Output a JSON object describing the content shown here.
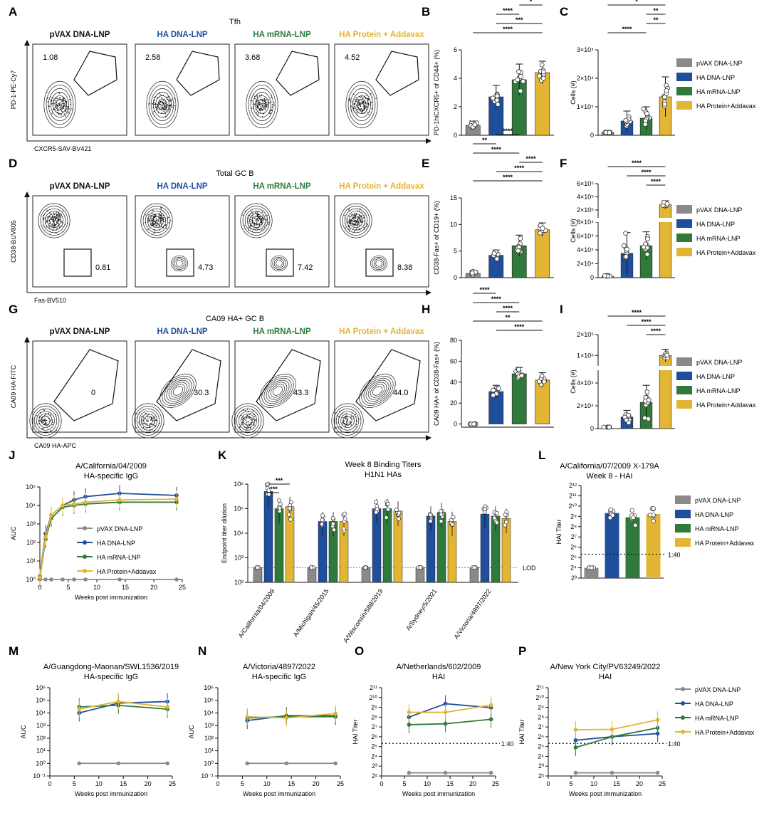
{
  "colors": {
    "pvax": "#8a8a8a",
    "dna": "#1f4e9c",
    "mrna": "#2f7a3a",
    "prot": "#e2b534"
  },
  "groups": [
    "pVAX DNA-LNP",
    "HA DNA-LNP",
    "HA mRNA-LNP",
    "HA Protein + Addavax"
  ],
  "legend_groups": [
    "pVAX DNA-LNP",
    "HA DNA-LNP",
    "HA mRNA-LNP",
    "HA Protein+Addavax"
  ],
  "flow_rows": [
    {
      "letter": "A",
      "title": "Tfh",
      "ylabel": "PD-1-PE-Cy7",
      "xlabel": "CXCR5-SAV-BV421",
      "gate": "poly",
      "values": [
        "1.08",
        "2.58",
        "3.68",
        "4.52"
      ]
    },
    {
      "letter": "D",
      "title": "Total GC B",
      "ylabel": "CD38-BUV805",
      "xlabel": "Fas-BV510",
      "gate": "box",
      "values": [
        "0.81",
        "4.73",
        "7.42",
        "8.38"
      ]
    },
    {
      "letter": "G",
      "title": "CA09 HA+ GC B",
      "ylabel": "CA09 HA-FITC",
      "xlabel": "CA09 HA-APC",
      "gate": "diag",
      "values": [
        "0",
        "30.3",
        "43.3",
        "44.0"
      ]
    }
  ],
  "chart_data": [
    {
      "id": "B",
      "type": "bar",
      "categories": [
        "pVAX DNA-LNP",
        "HA DNA-LNP",
        "HA mRNA-LNP",
        "HA Protein+Addavax"
      ],
      "values": [
        0.7,
        2.7,
        3.9,
        4.4
      ],
      "errors": [
        0.3,
        0.8,
        1.1,
        0.8
      ],
      "ylim": [
        0,
        6
      ],
      "yticks": [
        "0",
        "2",
        "4",
        "6"
      ],
      "ylabel": "PD-1hiCXCR5+ of CD44+ (%)",
      "sig": [
        "****",
        "***",
        "****",
        "*",
        "****"
      ]
    },
    {
      "id": "C",
      "type": "bar",
      "categories": [
        "pVAX DNA-LNP",
        "HA DNA-LNP",
        "HA mRNA-LNP",
        "HA Protein+Addavax"
      ],
      "values": [
        1000,
        5000,
        6000,
        13500
      ],
      "errors": [
        300,
        3500,
        4000,
        7000
      ],
      "ylim": [
        0,
        30000
      ],
      "yticks": [
        "0",
        "1×10⁴",
        "2×10⁴",
        "3×10⁴"
      ],
      "ylabel": "Cells (#)",
      "sig": [
        "****",
        "**",
        "**",
        "*"
      ]
    },
    {
      "id": "E",
      "type": "bar",
      "categories": [
        "pVAX DNA-LNP",
        "HA DNA-LNP",
        "HA mRNA-LNP",
        "HA Protein+Addavax"
      ],
      "values": [
        0.8,
        4.2,
        6.0,
        9.0
      ],
      "errors": [
        0.5,
        1.0,
        2.0,
        1.3
      ],
      "ylim": [
        0,
        15
      ],
      "yticks": [
        "0",
        "5",
        "10",
        "15"
      ],
      "ylabel": "CD38-Fas+ of CD19+ (%)",
      "sig": [
        "****",
        "****",
        "****",
        "****",
        "**",
        "****"
      ]
    },
    {
      "id": "F",
      "type": "bar",
      "categories": [
        "pVAX DNA-LNP",
        "HA DNA-LNP",
        "HA mRNA-LNP",
        "HA Protein+Addavax"
      ],
      "values": [
        2000,
        35000,
        46000,
        280000
      ],
      "errors": [
        1500,
        30000,
        20000,
        60000
      ],
      "yticks": [
        "0",
        "2×10⁴",
        "4×10⁴",
        "6×10⁴",
        "8×10⁴",
        "2×10⁵",
        "4×10⁵",
        "6×10⁵"
      ],
      "ylabel": "Cells (#)",
      "sig": [
        "****",
        "****",
        "****"
      ]
    },
    {
      "id": "H",
      "type": "bar",
      "categories": [
        "pVAX DNA-LNP",
        "HA DNA-LNP",
        "HA mRNA-LNP",
        "HA Protein+Addavax"
      ],
      "values": [
        0,
        31,
        48,
        42
      ],
      "errors": [
        1,
        6,
        6,
        7
      ],
      "ylim": [
        -3,
        80
      ],
      "yticks": [
        "0",
        "20",
        "40",
        "60",
        "80"
      ],
      "ylabel": "CA09 HA+ of CD38-Fas+ (%)",
      "sig": [
        "****",
        "**",
        "****",
        "****",
        "****"
      ]
    },
    {
      "id": "I",
      "type": "bar",
      "categories": [
        "pVAX DNA-LNP",
        "HA DNA-LNP",
        "HA mRNA-LNP",
        "HA Protein+Addavax"
      ],
      "values": [
        0,
        10000,
        23000,
        100000
      ],
      "errors": [
        500,
        6000,
        15000,
        30000
      ],
      "yticks": [
        "0",
        "2×10⁴",
        "4×10⁴",
        "1×10⁵",
        "2×10⁵"
      ],
      "ylabel": "Cells (#)",
      "sig": [
        "****",
        "****",
        "****"
      ]
    },
    {
      "id": "J",
      "type": "line",
      "title": "A/California/04/2009",
      "subtitle": "HA-specific IgG",
      "xlabel": "Weeks post immunization",
      "ylabel": "AUC",
      "yscale": "log",
      "xlim": [
        0,
        25
      ],
      "xticks": [
        "0",
        "5",
        "10",
        "15",
        "20",
        "25"
      ],
      "yticks": [
        "10⁰",
        "10¹",
        "10²",
        "10³",
        "10⁴",
        "10⁵"
      ],
      "x": [
        0,
        1,
        2,
        4,
        6,
        8,
        14,
        24
      ],
      "series": [
        {
          "name": "pVAX DNA-LNP",
          "values": [
            1,
            1,
            1,
            1,
            1,
            1,
            1,
            1
          ]
        },
        {
          "name": "HA DNA-LNP",
          "values": [
            1.5,
            300,
            3000,
            10000,
            20000,
            30000,
            45000,
            35000
          ]
        },
        {
          "name": "HA mRNA-LNP",
          "values": [
            1.2,
            150,
            2000,
            8000,
            10000,
            12000,
            15000,
            15000
          ]
        },
        {
          "name": "HA Protein+Addavax",
          "values": [
            1.3,
            200,
            3000,
            10000,
            12000,
            15000,
            20000,
            22000
          ]
        }
      ]
    },
    {
      "id": "K",
      "type": "bar",
      "title": "Week 8 Binding Titers",
      "subtitle": "H1N1 HAs",
      "ylabel": "Endpoint titer dilution",
      "yscale": "log",
      "yticks": [
        "10²",
        "10³",
        "10⁴",
        "10⁵",
        "10⁶"
      ],
      "lod": "LOD",
      "categories": [
        "A/California/04/2009",
        "A/Michigan/45/2015",
        "A/Wisconsin/588/2019",
        "A/Sydney/5/2021",
        "A/Victoria/4897/2022"
      ],
      "series": [
        {
          "name": "pVAX DNA-LNP",
          "values": [
            400,
            400,
            400,
            400,
            400
          ]
        },
        {
          "name": "HA DNA-LNP",
          "values": [
            500000,
            30000,
            100000,
            50000,
            60000
          ]
        },
        {
          "name": "HA mRNA-LNP",
          "values": [
            100000,
            30000,
            100000,
            70000,
            50000
          ]
        },
        {
          "name": "HA Protein+Addavax",
          "values": [
            120000,
            30000,
            80000,
            30000,
            40000
          ]
        }
      ],
      "sig": [
        "***",
        "***"
      ]
    },
    {
      "id": "L",
      "type": "bar",
      "title": "A/California/07/2009 X-179A",
      "subtitle": "Week 8 - HAI",
      "ylabel": "HAI Titer",
      "yscale": "log2",
      "yticks": [
        "2³",
        "2⁴",
        "2⁵",
        "2⁶",
        "2⁷",
        "2⁸",
        "2⁹",
        "2¹⁰",
        "2¹¹",
        "2¹²"
      ],
      "categories": [
        "pVAX DNA-LNP",
        "HA DNA-LNP",
        "HA mRNA-LNP",
        "HA Protein+Addavax"
      ],
      "values": [
        16,
        640,
        480,
        600
      ],
      "threshold": "1:40"
    },
    {
      "id": "M",
      "type": "line",
      "title": "A/Guangdong-Maonan/SWL1536/2019",
      "subtitle": "HA-specific IgG",
      "xlabel": "Weeks post immunization",
      "ylabel": "AUC",
      "yscale": "log",
      "xticks": [
        "0",
        "5",
        "10",
        "15",
        "20",
        "25"
      ],
      "yticks": [
        "10⁻¹",
        "10⁰",
        "10¹",
        "10²",
        "10³",
        "10⁴",
        "10⁵",
        "10⁶"
      ],
      "x": [
        6,
        14,
        24
      ],
      "series": [
        {
          "name": "pVAX DNA-LNP",
          "values": [
            1,
            1,
            1
          ]
        },
        {
          "name": "HA DNA-LNP",
          "values": [
            10000,
            60000,
            80000
          ]
        },
        {
          "name": "HA mRNA-LNP",
          "values": [
            30000,
            40000,
            20000
          ]
        },
        {
          "name": "HA Protein+Addavax",
          "values": [
            20000,
            80000,
            30000
          ]
        }
      ]
    },
    {
      "id": "N",
      "type": "line",
      "title": "A/Victoria/4897/2022",
      "subtitle": "HA-specific IgG",
      "xlabel": "Weeks post immunization",
      "ylabel": "AUC",
      "yscale": "log",
      "xticks": [
        "0",
        "5",
        "10",
        "15",
        "20",
        "25"
      ],
      "yticks": [
        "10⁻¹",
        "10⁰",
        "10¹",
        "10²",
        "10³",
        "10⁴",
        "10⁵",
        "10⁶"
      ],
      "x": [
        6,
        14,
        24
      ],
      "series": [
        {
          "name": "pVAX DNA-LNP",
          "values": [
            1,
            1,
            1
          ]
        },
        {
          "name": "HA DNA-LNP",
          "values": [
            2500,
            6000,
            6000
          ]
        },
        {
          "name": "HA mRNA-LNP",
          "values": [
            4000,
            5000,
            5000
          ]
        },
        {
          "name": "HA Protein+Addavax",
          "values": [
            5000,
            4000,
            9000
          ]
        }
      ]
    },
    {
      "id": "O",
      "type": "line",
      "title": "A/Netherlands/602/2009",
      "subtitle": "HAI",
      "xlabel": "Weeks post immunization",
      "ylabel": "HAI Titer",
      "yscale": "log2",
      "threshold": "1:40",
      "xticks": [
        "0",
        "5",
        "10",
        "15",
        "20",
        "25"
      ],
      "yticks": [
        "2²",
        "2³",
        "2⁴",
        "2⁵",
        "2⁶",
        "2⁷",
        "2⁸",
        "2⁹",
        "2¹⁰",
        "2¹¹"
      ],
      "x": [
        6,
        14,
        24
      ],
      "series": [
        {
          "name": "pVAX DNA-LNP",
          "values": [
            5,
            5,
            5
          ]
        },
        {
          "name": "HA DNA-LNP",
          "values": [
            256,
            660,
            500
          ]
        },
        {
          "name": "HA mRNA-LNP",
          "values": [
            150,
            160,
            220
          ]
        },
        {
          "name": "HA Protein+Addavax",
          "values": [
            360,
            360,
            600
          ]
        }
      ]
    },
    {
      "id": "P",
      "type": "line",
      "title": "A/New York City/PV63249/2022",
      "subtitle": "HAI",
      "xlabel": "Weeks post immunization",
      "ylabel": "HAI Titer",
      "yscale": "log2",
      "threshold": "1:40",
      "xticks": [
        "0",
        "5",
        "10",
        "15",
        "20",
        "25"
      ],
      "yticks": [
        "2²",
        "2³",
        "2⁴",
        "2⁵",
        "2⁶",
        "2⁷",
        "2⁸",
        "2⁹",
        "2¹⁰",
        "2¹¹"
      ],
      "x": [
        6,
        14,
        24
      ],
      "series": [
        {
          "name": "pVAX DNA-LNP",
          "values": [
            5,
            5,
            5
          ]
        },
        {
          "name": "HA DNA-LNP",
          "values": [
            50,
            64,
            80
          ]
        },
        {
          "name": "HA mRNA-LNP",
          "values": [
            30,
            64,
            120
          ]
        },
        {
          "name": "HA Protein+Addavax",
          "values": [
            105,
            108,
            210
          ]
        }
      ]
    }
  ]
}
